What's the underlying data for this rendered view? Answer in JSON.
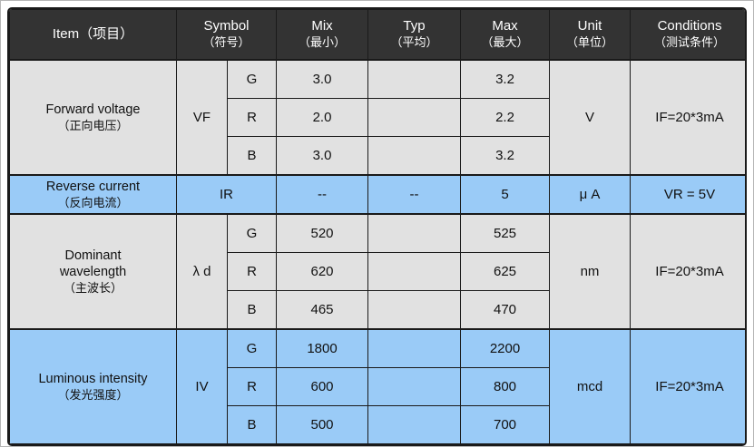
{
  "colors": {
    "header_bg": "#333333",
    "header_text": "#ffffff",
    "section_gray": "#e1e1e1",
    "section_blue": "#9acbf7",
    "border": "#1a1a1a"
  },
  "table": {
    "header": {
      "item": "Item（项目）",
      "symbol_en": "Symbol",
      "symbol_zh": "（符号）",
      "mix_en": "Mix",
      "mix_zh": "（最小）",
      "typ_en": "Typ",
      "typ_zh": "（平均）",
      "max_en": "Max",
      "max_zh": "（最大）",
      "unit_en": "Unit",
      "unit_zh": "（单位）",
      "cond_en": "Conditions",
      "cond_zh": "（测试条件）"
    },
    "sections": [
      {
        "item_en": "Forward voltage",
        "item_zh": "（正向电压）",
        "symbol": "VF",
        "unit": "V",
        "conditions": "IF=20*3mA",
        "rows": [
          {
            "channel": "G",
            "mix": "3.0",
            "typ": "",
            "max": "3.2"
          },
          {
            "channel": "R",
            "mix": "2.0",
            "typ": "",
            "max": "2.2"
          },
          {
            "channel": "B",
            "mix": "3.0",
            "typ": "",
            "max": "3.2"
          }
        ]
      },
      {
        "item_en": "Reverse current",
        "item_zh": "（反向电流）",
        "symbol": "IR",
        "unit": "μ A",
        "conditions": "VR = 5V",
        "rows": [
          {
            "channel": "",
            "mix": "--",
            "typ": "--",
            "max": "5"
          }
        ]
      },
      {
        "item_en": "Dominant\nwavelength",
        "item_zh": "（主波长）",
        "symbol": "λ d",
        "unit": "nm",
        "conditions": "IF=20*3mA",
        "rows": [
          {
            "channel": "G",
            "mix": "520",
            "typ": "",
            "max": "525"
          },
          {
            "channel": "R",
            "mix": "620",
            "typ": "",
            "max": "625"
          },
          {
            "channel": "B",
            "mix": "465",
            "typ": "",
            "max": "470"
          }
        ]
      },
      {
        "item_en": "Luminous intensity",
        "item_zh": "（发光强度）",
        "symbol": "IV",
        "unit": "mcd",
        "conditions": "IF=20*3mA",
        "rows": [
          {
            "channel": "G",
            "mix": "1800",
            "typ": "",
            "max": "2200"
          },
          {
            "channel": "R",
            "mix": "600",
            "typ": "",
            "max": "800"
          },
          {
            "channel": "B",
            "mix": "500",
            "typ": "",
            "max": "700"
          }
        ]
      }
    ]
  }
}
